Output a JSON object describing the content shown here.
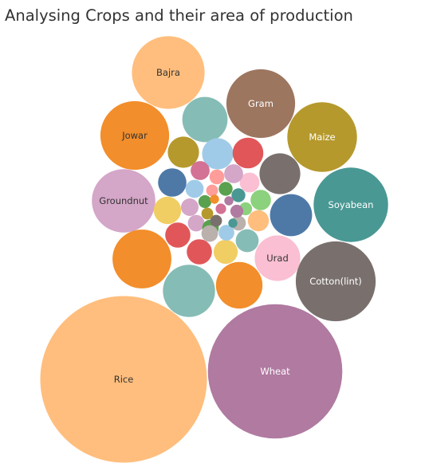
{
  "title": "Analysing Crops and their area of production",
  "chart_data": {
    "type": "bubble",
    "title": "Analysing Crops and their area of production",
    "size_measure": "area of production (relative)",
    "bubbles": [
      {
        "label": "Rice",
        "value": 100,
        "color": "#ffbe7d"
      },
      {
        "label": "Wheat",
        "value": 65,
        "color": "#b07aa1"
      },
      {
        "label": "Cotton(lint)",
        "value": 23,
        "color": "#79706e"
      },
      {
        "label": "Soyabean",
        "value": 20,
        "color": "#499894"
      },
      {
        "label": "Maize",
        "value": 17.5,
        "color": "#b6992d"
      },
      {
        "label": "Gram",
        "value": 17,
        "color": "#9d7660"
      },
      {
        "label": "Jowar",
        "value": 17,
        "color": "#f28e2b"
      },
      {
        "label": "Bajra",
        "value": 19,
        "color": "#ffbe7d"
      },
      {
        "label": "Groundnut",
        "value": 14.5,
        "color": "#d4a6c8"
      },
      {
        "label": "Urad",
        "value": 7.5,
        "color": "#fabfd2"
      },
      {
        "label": "",
        "value": 12.5,
        "color": "#f28e2b"
      },
      {
        "label": "",
        "value": 9.8,
        "color": "#86bcb6"
      },
      {
        "label": "",
        "value": 7.8,
        "color": "#f28e2b"
      },
      {
        "label": "",
        "value": 7.4,
        "color": "#86bcb6"
      },
      {
        "label": "",
        "value": 6.0,
        "color": "#79706e"
      },
      {
        "label": "",
        "value": 6.4,
        "color": "#4e79a7"
      },
      {
        "label": "",
        "value": 3.5,
        "color": "#b6992d"
      },
      {
        "label": "",
        "value": 3.5,
        "color": "#a0cbe8"
      },
      {
        "label": "",
        "value": 3.4,
        "color": "#e15759"
      },
      {
        "label": "",
        "value": 2.9,
        "color": "#4e79a7"
      },
      {
        "label": "",
        "value": 2.7,
        "color": "#f1ce63"
      },
      {
        "label": "",
        "value": 2.3,
        "color": "#e15759"
      },
      {
        "label": "",
        "value": 2.3,
        "color": "#e15759"
      },
      {
        "label": "",
        "value": 2.1,
        "color": "#f1ce63"
      },
      {
        "label": "",
        "value": 1.9,
        "color": "#86bcb6"
      },
      {
        "label": "",
        "value": 1.6,
        "color": "#ffbe7d"
      },
      {
        "label": "",
        "value": 1.5,
        "color": "#8cd17d"
      },
      {
        "label": "",
        "value": 1.4,
        "color": "#fabfd2"
      },
      {
        "label": "",
        "value": 1.3,
        "color": "#d37295"
      },
      {
        "label": "",
        "value": 1.3,
        "color": "#d4a6c8"
      },
      {
        "label": "",
        "value": 1.2,
        "color": "#a0cbe8"
      },
      {
        "label": "",
        "value": 1.1,
        "color": "#d4a6c8"
      },
      {
        "label": "",
        "value": 1.0,
        "color": "#d4a6c8"
      },
      {
        "label": "",
        "value": 1.0,
        "color": "#59a14f"
      },
      {
        "label": "",
        "value": 1.0,
        "color": "#bab0ac"
      },
      {
        "label": "",
        "value": 0.9,
        "color": "#a0cbe8"
      },
      {
        "label": "",
        "value": 0.8,
        "color": "#ff9d9a"
      },
      {
        "label": "",
        "value": 0.8,
        "color": "#bab0ac"
      },
      {
        "label": "",
        "value": 0.7,
        "color": "#59a14f"
      },
      {
        "label": "",
        "value": 0.7,
        "color": "#499894"
      },
      {
        "label": "",
        "value": 0.6,
        "color": "#59a14f"
      },
      {
        "label": "",
        "value": 0.6,
        "color": "#8cd17d"
      },
      {
        "label": "",
        "value": 0.6,
        "color": "#b07aa1"
      },
      {
        "label": "",
        "value": 0.5,
        "color": "#ff9d9a"
      },
      {
        "label": "",
        "value": 0.5,
        "color": "#79706e"
      },
      {
        "label": "",
        "value": 0.5,
        "color": "#b6992d"
      },
      {
        "label": "",
        "value": 0.4,
        "color": "#d37295"
      },
      {
        "label": "",
        "value": 0.3,
        "color": "#f28e2b"
      },
      {
        "label": "",
        "value": 0.3,
        "color": "#b07aa1"
      },
      {
        "label": "",
        "value": 0.3,
        "color": "#499894"
      }
    ]
  }
}
